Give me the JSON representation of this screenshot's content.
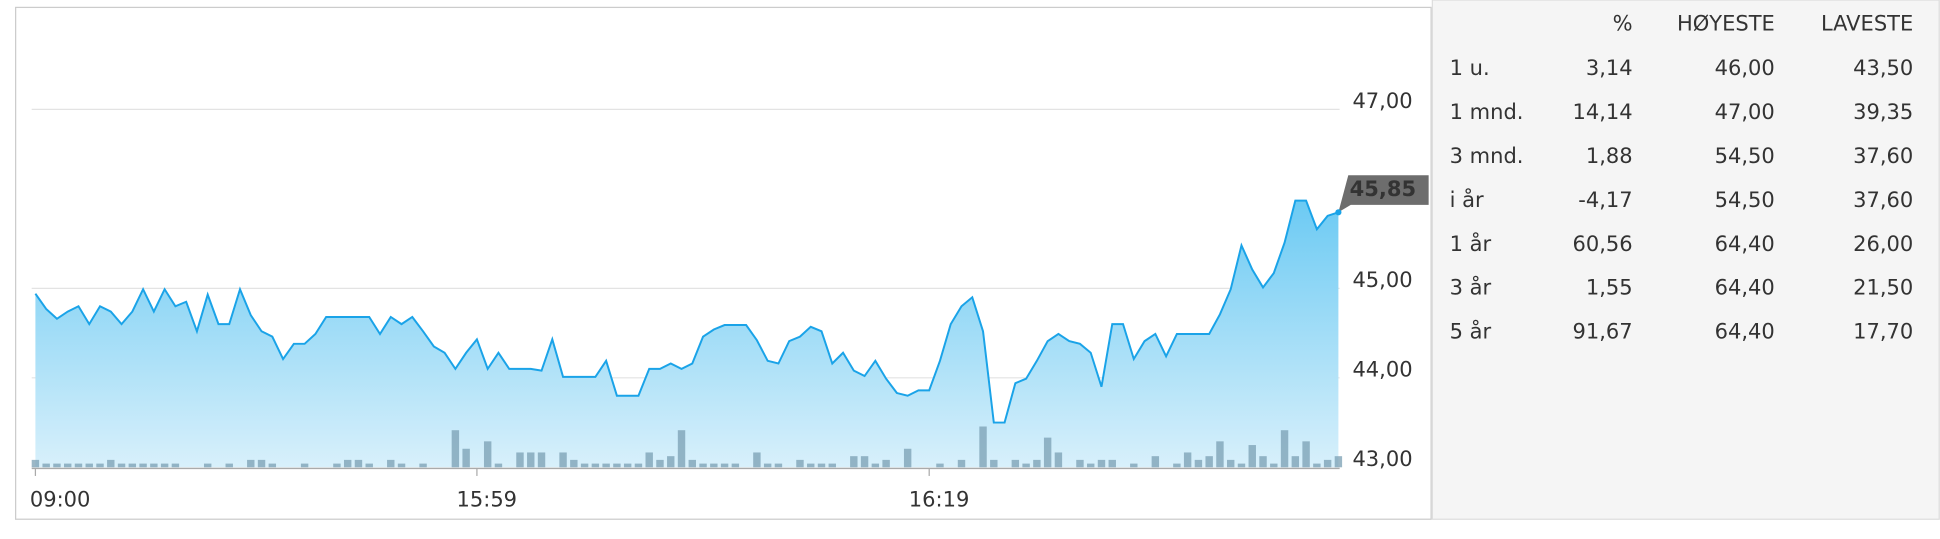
{
  "chart_data": {
    "type": "area",
    "categories": [
      "09:00",
      null,
      null,
      null,
      null,
      null,
      null,
      null,
      null,
      null,
      null,
      null,
      null,
      null,
      null,
      null,
      null,
      null,
      null,
      null,
      null,
      null,
      null,
      null,
      null,
      null,
      null,
      null,
      null,
      null,
      null,
      null,
      null,
      null,
      null,
      null,
      null,
      null,
      null,
      null,
      null,
      "15:59",
      null,
      null,
      null,
      null,
      null,
      null,
      null,
      null,
      null,
      null,
      null,
      null,
      null,
      null,
      null,
      null,
      null,
      null,
      null,
      null,
      null,
      null,
      null,
      null,
      null,
      null,
      null,
      null,
      null,
      null,
      null,
      null,
      null,
      null,
      null,
      null,
      null,
      null,
      null,
      null,
      null,
      "16:19",
      null,
      null,
      null,
      null,
      null,
      null,
      null,
      null,
      null,
      null,
      null,
      null,
      null,
      null,
      null,
      null,
      null,
      null,
      null,
      null,
      null,
      null,
      null,
      null,
      null,
      null,
      null,
      null,
      null,
      null,
      null,
      null,
      null,
      null,
      null,
      null,
      null,
      null
    ],
    "values": [
      44.94,
      44.77,
      44.66,
      44.74,
      44.8,
      44.6,
      44.8,
      44.74,
      44.6,
      44.74,
      44.99,
      44.74,
      44.99,
      44.8,
      44.85,
      44.52,
      44.93,
      44.6,
      44.6,
      44.99,
      44.7,
      44.52,
      44.46,
      44.21,
      44.38,
      44.38,
      44.49,
      44.68,
      44.68,
      44.68,
      44.68,
      44.68,
      44.49,
      44.68,
      44.6,
      44.68,
      44.52,
      44.35,
      44.28,
      44.1,
      44.28,
      44.43,
      44.1,
      44.28,
      44.1,
      44.1,
      44.1,
      44.08,
      44.43,
      44.01,
      44.01,
      44.01,
      44.01,
      44.19,
      43.8,
      43.8,
      43.8,
      44.1,
      44.1,
      44.16,
      44.1,
      44.16,
      44.46,
      44.54,
      44.59,
      44.59,
      44.59,
      44.42,
      44.19,
      44.16,
      44.41,
      44.46,
      44.57,
      44.52,
      44.16,
      44.28,
      44.08,
      44.02,
      44.19,
      43.99,
      43.83,
      43.8,
      43.86,
      43.86,
      44.19,
      44.6,
      44.8,
      44.9,
      44.52,
      43.5,
      43.5,
      43.94,
      43.99,
      44.19,
      44.41,
      44.49,
      44.41,
      44.38,
      44.28,
      43.9,
      44.6,
      44.6,
      44.21,
      44.41,
      44.49,
      44.24,
      44.49,
      44.49,
      44.49,
      44.49,
      44.71,
      44.99,
      45.48,
      45.21,
      45.01,
      45.17,
      45.51,
      45.98,
      45.98,
      45.66,
      45.81,
      45.85
    ],
    "volumes": [
      2,
      1,
      1,
      1,
      1,
      1,
      1,
      2,
      1,
      1,
      1,
      1,
      1,
      1,
      0,
      0,
      1,
      0,
      1,
      0,
      2,
      2,
      1,
      0,
      0,
      1,
      0,
      0,
      1,
      2,
      2,
      1,
      0,
      2,
      1,
      0,
      1,
      0,
      0,
      10,
      5,
      0,
      7,
      1,
      0,
      4,
      4,
      4,
      0,
      4,
      2,
      1,
      1,
      1,
      1,
      1,
      1,
      4,
      2,
      3,
      10,
      2,
      1,
      1,
      1,
      1,
      0,
      4,
      1,
      1,
      0,
      2,
      1,
      1,
      1,
      0,
      3,
      3,
      1,
      2,
      0,
      5,
      0,
      0,
      1,
      0,
      2,
      0,
      11,
      2,
      0,
      2,
      1,
      2,
      8,
      4,
      0,
      2,
      1,
      2,
      2,
      0,
      1,
      0,
      3,
      0,
      1,
      4,
      2,
      3,
      7,
      2,
      1,
      6,
      3,
      1,
      10,
      3,
      7,
      1,
      2,
      3
    ],
    "color": "#1aa3e8",
    "ylim": [
      43,
      47.2
    ],
    "yticks": [
      {
        "value": 43,
        "label": "43,00"
      },
      {
        "value": 44,
        "label": "44,00"
      },
      {
        "value": 45,
        "label": "45,00"
      },
      {
        "value": 47,
        "label": "47,00"
      }
    ],
    "grid": true,
    "last_price": {
      "value": 45.85,
      "label": "45,85"
    }
  },
  "table": {
    "headers": [
      "%",
      "HØYESTE",
      "LAVESTE"
    ],
    "rows": [
      [
        "1 u.",
        "3,14",
        "46,00",
        "43,50"
      ],
      [
        "1 mnd.",
        "14,14",
        "47,00",
        "39,35"
      ],
      [
        "3 mnd.",
        "1,88",
        "54,50",
        "37,60"
      ],
      [
        "i år",
        "-4,17",
        "54,50",
        "37,60"
      ],
      [
        "1 år",
        "60,56",
        "64,40",
        "26,00"
      ],
      [
        "3 år",
        "1,55",
        "64,40",
        "21,50"
      ],
      [
        "5 år",
        "91,67",
        "64,40",
        "17,70"
      ]
    ]
  }
}
